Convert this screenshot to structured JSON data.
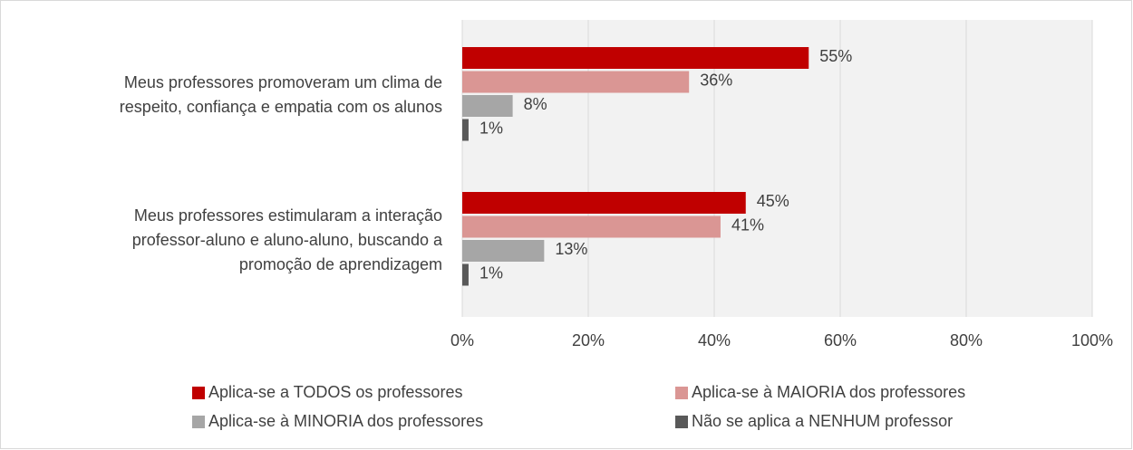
{
  "chart_data": {
    "type": "barh",
    "categories": [
      "Meus professores promoveram um clima de\nrespeito, confiança e empatia com os alunos",
      "Meus professores estimularam a interação\nprofessor-aluno e aluno-aluno, buscando a\npromoção de aprendizagem"
    ],
    "series": [
      {
        "name": "Aplica-se a TODOS os professores",
        "color": "#c00000",
        "values": [
          55,
          45
        ],
        "value_labels": [
          "55%",
          "45%"
        ]
      },
      {
        "name": "Aplica-se à MAIORIA dos professores",
        "color": "#da9694",
        "values": [
          36,
          41
        ],
        "value_labels": [
          "36%",
          "41%"
        ]
      },
      {
        "name": "Aplica-se à MINORIA dos professores",
        "color": "#a6a6a6",
        "values": [
          8,
          13
        ],
        "value_labels": [
          "8%",
          "13%"
        ]
      },
      {
        "name": "Não se aplica a NENHUM professor",
        "color": "#595959",
        "values": [
          1,
          1
        ],
        "value_labels": [
          "1%",
          "1%"
        ]
      }
    ],
    "xlim": [
      0,
      100
    ],
    "xticks": [
      {
        "value": 0,
        "label": "0%"
      },
      {
        "value": 20,
        "label": "20%"
      },
      {
        "value": 40,
        "label": "40%"
      },
      {
        "value": 60,
        "label": "60%"
      },
      {
        "value": 80,
        "label": "80%"
      },
      {
        "value": 100,
        "label": "100%"
      }
    ],
    "grid": true,
    "legend": "bottom"
  }
}
